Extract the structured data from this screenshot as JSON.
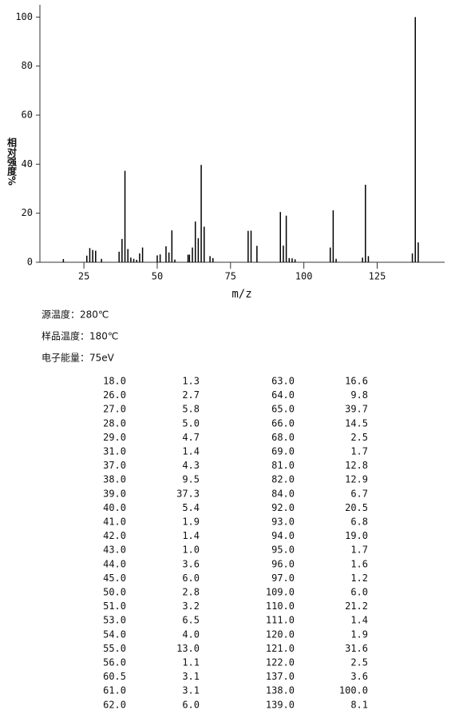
{
  "chart_data": {
    "type": "bar",
    "ylabel": "相对强度%",
    "xlabel": "m/z",
    "color": "#000000",
    "x": [
      18,
      26,
      27,
      28,
      29,
      31,
      37,
      38,
      39,
      40,
      41,
      42,
      43,
      44,
      45,
      50,
      51,
      53,
      54,
      55,
      56,
      60.5,
      61,
      62,
      63,
      64,
      65,
      66,
      68,
      69,
      81,
      82,
      84,
      92,
      93,
      94,
      95,
      96,
      97,
      109,
      110,
      111,
      120,
      121,
      122,
      137,
      138,
      139
    ],
    "values": [
      1.3,
      2.7,
      5.8,
      5.0,
      4.7,
      1.4,
      4.3,
      9.5,
      37.3,
      5.4,
      1.9,
      1.4,
      1.0,
      3.6,
      6.0,
      2.8,
      3.2,
      6.5,
      4.0,
      13.0,
      1.1,
      3.1,
      3.1,
      6.0,
      16.6,
      9.8,
      39.7,
      14.5,
      2.5,
      1.7,
      12.8,
      12.9,
      6.7,
      20.5,
      6.8,
      19.0,
      1.7,
      1.6,
      1.2,
      6.0,
      21.2,
      1.4,
      1.9,
      31.6,
      2.5,
      3.6,
      100.0,
      8.1
    ],
    "xlim": [
      10,
      148
    ],
    "xticks": [
      25,
      50,
      75,
      100,
      125
    ],
    "ylim": [
      0,
      105
    ],
    "yticks": [
      0,
      20,
      40,
      60,
      80,
      100
    ],
    "grid": false
  },
  "conditions": [
    "源温度：280℃",
    "样品温度：180℃",
    "电子能量：75eV"
  ],
  "table": {
    "rows": [
      [
        "18.0",
        "1.3"
      ],
      [
        "26.0",
        "2.7"
      ],
      [
        "27.0",
        "5.8"
      ],
      [
        "28.0",
        "5.0"
      ],
      [
        "29.0",
        "4.7"
      ],
      [
        "31.0",
        "1.4"
      ],
      [
        "37.0",
        "4.3"
      ],
      [
        "38.0",
        "9.5"
      ],
      [
        "39.0",
        "37.3"
      ],
      [
        "40.0",
        "5.4"
      ],
      [
        "41.0",
        "1.9"
      ],
      [
        "42.0",
        "1.4"
      ],
      [
        "43.0",
        "1.0"
      ],
      [
        "44.0",
        "3.6"
      ],
      [
        "45.0",
        "6.0"
      ],
      [
        "50.0",
        "2.8"
      ],
      [
        "51.0",
        "3.2"
      ],
      [
        "53.0",
        "6.5"
      ],
      [
        "54.0",
        "4.0"
      ],
      [
        "55.0",
        "13.0"
      ],
      [
        "56.0",
        "1.1"
      ],
      [
        "60.5",
        "3.1"
      ],
      [
        "61.0",
        "3.1"
      ],
      [
        "62.0",
        "6.0"
      ],
      [
        "63.0",
        "16.6"
      ],
      [
        "64.0",
        "9.8"
      ],
      [
        "65.0",
        "39.7"
      ],
      [
        "66.0",
        "14.5"
      ],
      [
        "68.0",
        "2.5"
      ],
      [
        "69.0",
        "1.7"
      ],
      [
        "81.0",
        "12.8"
      ],
      [
        "82.0",
        "12.9"
      ],
      [
        "84.0",
        "6.7"
      ],
      [
        "92.0",
        "20.5"
      ],
      [
        "93.0",
        "6.8"
      ],
      [
        "94.0",
        "19.0"
      ],
      [
        "95.0",
        "1.7"
      ],
      [
        "96.0",
        "1.6"
      ],
      [
        "97.0",
        "1.2"
      ],
      [
        "109.0",
        "6.0"
      ],
      [
        "110.0",
        "21.2"
      ],
      [
        "111.0",
        "1.4"
      ],
      [
        "120.0",
        "1.9"
      ],
      [
        "121.0",
        "31.6"
      ],
      [
        "122.0",
        "2.5"
      ],
      [
        "137.0",
        "3.6"
      ],
      [
        "138.0",
        "100.0"
      ],
      [
        "139.0",
        "8.1"
      ]
    ]
  }
}
